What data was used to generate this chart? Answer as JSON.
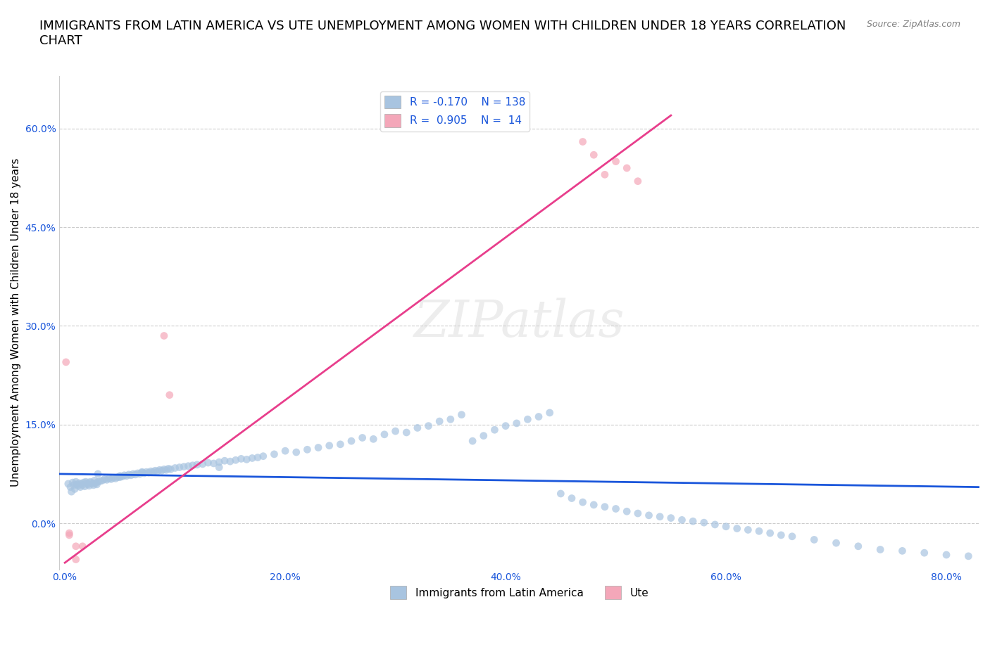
{
  "title": "IMMIGRANTS FROM LATIN AMERICA VS UTE UNEMPLOYMENT AMONG WOMEN WITH CHILDREN UNDER 18 YEARS CORRELATION\nCHART",
  "source_text": "Source: ZipAtlas.com",
  "xlabel": "",
  "ylabel": "Unemployment Among Women with Children Under 18 years",
  "xlim": [
    -0.005,
    0.83
  ],
  "ylim": [
    -0.07,
    0.68
  ],
  "xticks": [
    0.0,
    0.2,
    0.4,
    0.6,
    0.8
  ],
  "xticklabels": [
    "0.0%",
    "20.0%",
    "40.0%",
    "60.0%",
    "80.0%"
  ],
  "yticks": [
    0.0,
    0.15,
    0.3,
    0.45,
    0.6
  ],
  "yticklabels": [
    "0.0%",
    "15.0%",
    "30.0%",
    "45.0%",
    "60.0%"
  ],
  "blue_color": "#a8c4e0",
  "blue_line_color": "#1a56db",
  "pink_color": "#f4a7b9",
  "pink_line_color": "#e83e8c",
  "legend_R_blue": "R = -0.170",
  "legend_N_blue": "N = 138",
  "legend_R_pink": "R =  0.905",
  "legend_N_pink": "N =  14",
  "watermark": "ZIPatlas",
  "legend_label_blue": "Immigrants from Latin America",
  "legend_label_pink": "Ute",
  "blue_scatter_x": [
    0.003,
    0.005,
    0.006,
    0.007,
    0.008,
    0.009,
    0.01,
    0.011,
    0.012,
    0.013,
    0.014,
    0.015,
    0.016,
    0.017,
    0.018,
    0.019,
    0.02,
    0.021,
    0.022,
    0.023,
    0.024,
    0.025,
    0.026,
    0.027,
    0.028,
    0.029,
    0.03,
    0.032,
    0.034,
    0.036,
    0.038,
    0.04,
    0.042,
    0.044,
    0.046,
    0.048,
    0.05,
    0.052,
    0.054,
    0.056,
    0.058,
    0.06,
    0.062,
    0.064,
    0.066,
    0.068,
    0.07,
    0.072,
    0.074,
    0.076,
    0.078,
    0.08,
    0.082,
    0.084,
    0.086,
    0.088,
    0.09,
    0.092,
    0.094,
    0.096,
    0.1,
    0.104,
    0.108,
    0.112,
    0.116,
    0.12,
    0.125,
    0.13,
    0.135,
    0.14,
    0.145,
    0.15,
    0.155,
    0.16,
    0.165,
    0.17,
    0.175,
    0.18,
    0.19,
    0.2,
    0.21,
    0.22,
    0.23,
    0.24,
    0.25,
    0.26,
    0.27,
    0.28,
    0.29,
    0.3,
    0.31,
    0.32,
    0.33,
    0.34,
    0.35,
    0.36,
    0.37,
    0.38,
    0.39,
    0.4,
    0.41,
    0.42,
    0.43,
    0.44,
    0.45,
    0.46,
    0.47,
    0.48,
    0.49,
    0.5,
    0.51,
    0.52,
    0.53,
    0.54,
    0.55,
    0.56,
    0.57,
    0.58,
    0.59,
    0.6,
    0.61,
    0.62,
    0.63,
    0.64,
    0.65,
    0.66,
    0.68,
    0.7,
    0.72,
    0.74,
    0.76,
    0.78,
    0.8,
    0.82,
    0.03,
    0.05,
    0.07,
    0.14
  ],
  "blue_scatter_y": [
    0.06,
    0.055,
    0.048,
    0.062,
    0.058,
    0.052,
    0.063,
    0.059,
    0.057,
    0.061,
    0.055,
    0.06,
    0.058,
    0.062,
    0.056,
    0.063,
    0.061,
    0.059,
    0.057,
    0.063,
    0.062,
    0.06,
    0.058,
    0.065,
    0.061,
    0.059,
    0.063,
    0.064,
    0.065,
    0.067,
    0.066,
    0.068,
    0.067,
    0.069,
    0.068,
    0.07,
    0.072,
    0.071,
    0.073,
    0.072,
    0.074,
    0.073,
    0.075,
    0.074,
    0.076,
    0.075,
    0.077,
    0.076,
    0.078,
    0.077,
    0.079,
    0.078,
    0.08,
    0.079,
    0.081,
    0.08,
    0.082,
    0.081,
    0.083,
    0.082,
    0.084,
    0.085,
    0.086,
    0.087,
    0.088,
    0.089,
    0.09,
    0.092,
    0.091,
    0.093,
    0.095,
    0.094,
    0.096,
    0.098,
    0.097,
    0.099,
    0.1,
    0.102,
    0.105,
    0.11,
    0.108,
    0.112,
    0.115,
    0.118,
    0.12,
    0.125,
    0.13,
    0.128,
    0.135,
    0.14,
    0.138,
    0.145,
    0.148,
    0.155,
    0.158,
    0.165,
    0.125,
    0.133,
    0.142,
    0.148,
    0.152,
    0.158,
    0.162,
    0.168,
    0.045,
    0.038,
    0.032,
    0.028,
    0.025,
    0.022,
    0.018,
    0.015,
    0.012,
    0.01,
    0.008,
    0.005,
    0.003,
    0.001,
    -0.002,
    -0.005,
    -0.008,
    -0.01,
    -0.012,
    -0.015,
    -0.018,
    -0.02,
    -0.025,
    -0.03,
    -0.035,
    -0.04,
    -0.042,
    -0.045,
    -0.048,
    -0.05,
    0.075,
    0.07,
    0.078,
    0.085
  ],
  "pink_scatter_x": [
    0.001,
    0.004,
    0.004,
    0.01,
    0.01,
    0.016,
    0.09,
    0.095,
    0.47,
    0.48,
    0.49,
    0.5,
    0.51,
    0.52
  ],
  "pink_scatter_y": [
    0.245,
    -0.015,
    -0.018,
    -0.035,
    -0.055,
    -0.035,
    0.285,
    0.195,
    0.58,
    0.56,
    0.53,
    0.55,
    0.54,
    0.52
  ],
  "blue_trend_x": [
    -0.005,
    0.83
  ],
  "blue_trend_y": [
    0.075,
    0.055
  ],
  "pink_trend_x": [
    0.0,
    0.55
  ],
  "pink_trend_y": [
    -0.06,
    0.62
  ],
  "grid_color": "#cccccc",
  "title_fontsize": 13,
  "axis_label_fontsize": 11,
  "tick_fontsize": 10,
  "scatter_size": 60,
  "scatter_alpha": 0.7
}
